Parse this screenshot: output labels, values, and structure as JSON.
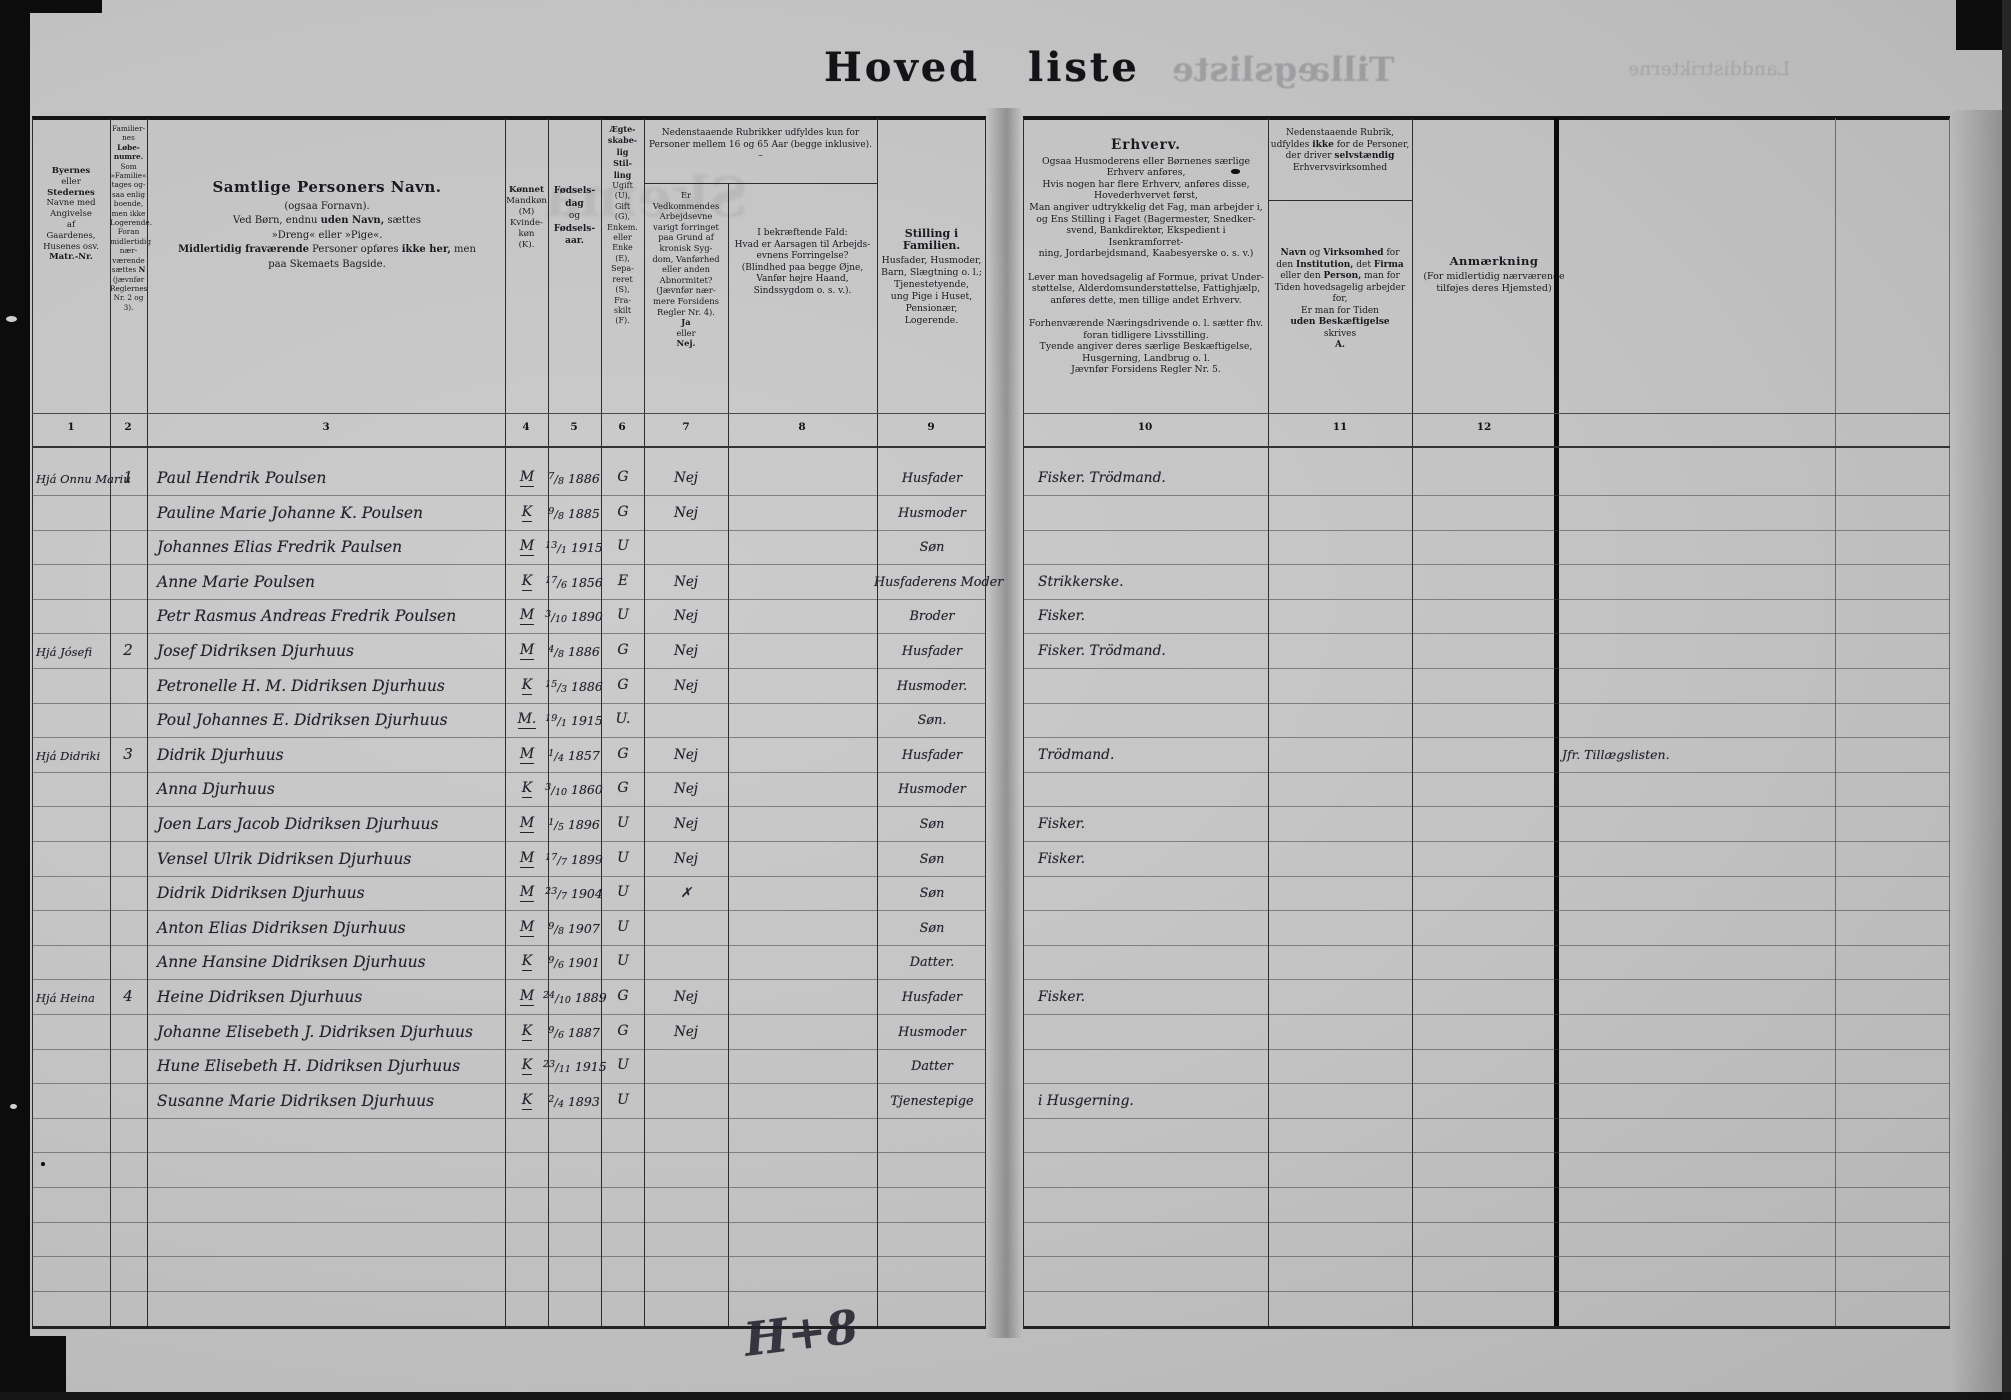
{
  "scan": {
    "title_left": "Hoved",
    "title_right": "liste"
  },
  "headers": {
    "span78": {
      "lines": [
        "Nedenstaaende Rubrikker udfyldes kun for",
        "Personer mellem 16 og 65 Aar (begge inklusive).",
        "–"
      ]
    },
    "c1": {
      "lines": [
        "**Byernes**",
        "eller",
        "**Stedernes**",
        "Navne med",
        "Angivelse",
        "af",
        "Gaardenes,",
        "Husenes osv.",
        "**Matr.-Nr.**"
      ]
    },
    "c2": {
      "lines": [
        "Familier-",
        "nes",
        "**Løbe-**",
        "**numre.**",
        "Som",
        "»Familie«",
        "tages og-",
        "saa enlig",
        "boende,",
        "men ikke",
        "Logerende.",
        "Foran",
        "midlertidig",
        "nær-",
        "værende",
        "sættes **N**",
        "(jævnfør",
        "Reglernes",
        "Nr. 2 og 3)."
      ]
    },
    "c3": {
      "lines": [
        "##Samtlige Personers Navn.",
        "(ogsaa Fornavn).",
        "Ved Børn, endnu **uden Navn,** sættes",
        "»Dreng« eller »Pige«.",
        "**Midlertidig fraværende** Personer opføres **ikke her,** men",
        "paa Skemaets Bagside."
      ]
    },
    "c4": {
      "lines": [
        "**Kønnet**",
        "Mandkøn",
        "(M)",
        "Kvinde-",
        "køn",
        "(K)."
      ]
    },
    "c5": {
      "lines": [
        "**Fødsels-**",
        "**dag**",
        "og",
        "**Fødsels-**",
        "**aar.**"
      ]
    },
    "c6": {
      "lines": [
        "**Ægte-**",
        "**skabe-**",
        "**lig**",
        "**Stil-**",
        "**ling**",
        "Ugift",
        "(U),",
        "Gift",
        "(G),",
        "Enkem.",
        "eller",
        "Enke",
        "(E),",
        "Sepa-",
        "reret",
        "(S),",
        "Fra-",
        "skilt",
        "(F)."
      ]
    },
    "c7": {
      "lines": [
        "Er",
        "Vedkommendes",
        "Arbejdsevne",
        "varigt forringet",
        "paa Grund af",
        "kronisk Syg-",
        "dom, Vanførhed",
        "eller anden",
        "Abnormitet?",
        "(Jævnfør nær-",
        "mere Forsidens",
        "Regler Nr. 4).",
        "**Ja**",
        "eller",
        "**Nej.**"
      ]
    },
    "c8": {
      "lines": [
        "I bekræftende Fald:",
        "Hvad er Aarsagen til Arbejds-",
        "evnens Forringelse?",
        "(Blindhed paa begge Øjne,",
        "Vanfør højre Haand,",
        "Sindssygdom o. s. v.)."
      ]
    },
    "c9": {
      "lines": [
        "##Stilling i Familien.",
        "Husfader, Husmoder,",
        "Barn, Slægtning o. l.;",
        "Tjenestetyende,",
        "ung Pige i Huset,",
        "Pensionær,",
        "Logerende."
      ]
    },
    "c10": {
      "lines": [
        "##Erhverv.",
        "Ogsaa Husmoderens eller Børnenes særlige",
        "Erhverv anføres,",
        "Hvis nogen har flere Erhverv, anføres disse,",
        "Hovederhvervet først,",
        "Man angiver udtrykkelig det Fag, man arbejder i,",
        "og Ens Stilling i Faget (Bagermester, Snedker-",
        "svend, Bankdirektør, Ekspedient i Isenkramforret-",
        "ning, Jordarbejdsmand, Kaabesyerske o. s. v.)",
        "",
        "Lever man hovedsagelig af Formue, privat Under-",
        "støttelse, Alderdomsunderstøttelse, Fattighjælp,",
        "anføres dette, men tillige andet Erhverv.",
        "",
        "Forhenværende Næringsdrivende o. l. sætter fhv.",
        "foran tidligere Livsstilling.",
        "Tyende angiver deres særlige Beskæftigelse,",
        "Husgerning, Landbrug o. l.",
        "Jævnfør Forsidens Regler Nr. 5."
      ]
    },
    "c11a": {
      "lines": [
        "Nedenstaaende Rubrik,",
        "udfyldes **ikke** for de Personer,",
        "der driver **selvstændig**",
        "Erhvervsvirksomhed"
      ]
    },
    "c11b": {
      "lines": [
        "**Navn** og **Virksomhed** for",
        "den **Institution,** det **Firma**",
        "eller den **Person,** man for",
        "Tiden hovedsagelig arbejder",
        "for,",
        "Er man for Tiden",
        "**uden Beskæftigelse**",
        "skrives",
        "**A.**"
      ]
    },
    "c12": {
      "lines": [
        "##Anmærkning",
        "(For midlertidig nærværende",
        "tilføjes deres Hjemsted)"
      ]
    }
  },
  "col_numbers_left": [
    "1",
    "2",
    "3",
    "4",
    "5",
    "6",
    "7",
    "8",
    "9"
  ],
  "col_numbers_right": [
    "10",
    "11",
    "12"
  ],
  "rows": [
    {
      "place": "Hjá Onnu Mariu",
      "family": "1",
      "name": "Paul Hendrik Poulsen",
      "sex": "M",
      "bd": "7",
      "bm": "8",
      "by": "1886",
      "marital": "G",
      "able": "Nej",
      "cause": "",
      "position": "Husfader",
      "occupation": "Fisker. Trödmand.",
      "employer": "",
      "remark": ""
    },
    {
      "place": "",
      "family": "",
      "name": "Pauline Marie Johanne K. Poulsen",
      "sex": "K",
      "bd": "9",
      "bm": "8",
      "by": "1885",
      "marital": "G",
      "able": "Nej",
      "cause": "",
      "position": "Husmoder",
      "occupation": "",
      "employer": "",
      "remark": ""
    },
    {
      "place": "",
      "family": "",
      "name": "Johannes Elias Fredrik Paulsen",
      "sex": "M",
      "bd": "13",
      "bm": "1",
      "by": "1915",
      "marital": "U",
      "able": "",
      "cause": "",
      "position": "Søn",
      "occupation": "",
      "employer": "",
      "remark": ""
    },
    {
      "place": "",
      "family": "",
      "name": "Anne Marie Poulsen",
      "sex": "K",
      "bd": "17",
      "bm": "6",
      "by": "1856",
      "marital": "E",
      "able": "Nej",
      "cause": "",
      "position": "Husfaderens Moder",
      "occupation": "Strikkerske.",
      "employer": "",
      "remark": ""
    },
    {
      "place": "",
      "family": "",
      "name": "Petr Rasmus Andreas Fredrik Poulsen",
      "sex": "M",
      "bd": "3",
      "bm": "10",
      "by": "1890",
      "marital": "U",
      "able": "Nej",
      "cause": "",
      "position": "Broder",
      "occupation": "Fisker.",
      "employer": "",
      "remark": ""
    },
    {
      "place": "Hjá Jósefi",
      "family": "2",
      "name": "Josef Didriksen Djurhuus",
      "sex": "M",
      "bd": "4",
      "bm": "8",
      "by": "1886",
      "marital": "G",
      "able": "Nej",
      "cause": "",
      "position": "Husfader",
      "occupation": "Fisker. Trödmand.",
      "employer": "",
      "remark": ""
    },
    {
      "place": "",
      "family": "",
      "name": "Petronelle H. M. Didriksen Djurhuus",
      "sex": "K",
      "bd": "15",
      "bm": "3",
      "by": "1886",
      "marital": "G",
      "able": "Nej",
      "cause": "",
      "position": "Husmoder.",
      "occupation": "",
      "employer": "",
      "remark": ""
    },
    {
      "place": "",
      "family": "",
      "name": "Poul Johannes E. Didriksen Djurhuus",
      "sex": "M.",
      "bd": "19",
      "bm": "1",
      "by": "1915",
      "marital": "U.",
      "able": "",
      "cause": "",
      "position": "Søn.",
      "occupation": "",
      "employer": "",
      "remark": ""
    },
    {
      "place": "Hjá Didriki",
      "family": "3",
      "name": "Didrik Djurhuus",
      "sex": "M",
      "bd": "1",
      "bm": "4",
      "by": "1857",
      "marital": "G",
      "able": "Nej",
      "cause": "",
      "position": "Husfader",
      "occupation": "Trödmand.",
      "employer": "",
      "remark": "Jfr. Tillægslisten."
    },
    {
      "place": "",
      "family": "",
      "name": "Anna Djurhuus",
      "sex": "K",
      "bd": "3",
      "bm": "10",
      "by": "1860",
      "marital": "G",
      "able": "Nej",
      "cause": "",
      "position": "Husmoder",
      "occupation": "",
      "employer": "",
      "remark": ""
    },
    {
      "place": "",
      "family": "",
      "name": "Joen Lars Jacob Didriksen Djurhuus",
      "sex": "M",
      "bd": "1",
      "bm": "5",
      "by": "1896",
      "marital": "U",
      "able": "Nej",
      "cause": "",
      "position": "Søn",
      "occupation": "Fisker.",
      "employer": "",
      "remark": ""
    },
    {
      "place": "",
      "family": "",
      "name": "Vensel Ulrik Didriksen Djurhuus",
      "sex": "M",
      "bd": "17",
      "bm": "7",
      "by": "1899",
      "marital": "U",
      "able": "Nej",
      "cause": "",
      "position": "Søn",
      "occupation": "Fisker.",
      "employer": "",
      "remark": ""
    },
    {
      "place": "",
      "family": "",
      "name": "Didrik Didriksen Djurhuus",
      "sex": "M",
      "bd": "23",
      "bm": "7",
      "by": "1904",
      "marital": "U",
      "able": "✗",
      "cause": "",
      "position": "Søn",
      "occupation": "",
      "employer": "",
      "remark": ""
    },
    {
      "place": "",
      "family": "",
      "name": "Anton Elias Didriksen Djurhuus",
      "sex": "M",
      "bd": "9",
      "bm": "8",
      "by": "1907",
      "marital": "U",
      "able": "",
      "cause": "",
      "position": "Søn",
      "occupation": "",
      "employer": "",
      "remark": ""
    },
    {
      "place": "",
      "family": "",
      "name": "Anne Hansine Didriksen Djurhuus",
      "sex": "K",
      "bd": "9",
      "bm": "6",
      "by": "1901",
      "marital": "U",
      "able": "",
      "cause": "",
      "position": "Datter.",
      "occupation": "",
      "employer": "",
      "remark": ""
    },
    {
      "place": "Hjá Heina",
      "family": "4",
      "name": "Heine Didriksen Djurhuus",
      "sex": "M",
      "bd": "24",
      "bm": "10",
      "by": "1889",
      "marital": "G",
      "able": "Nej",
      "cause": "",
      "position": "Husfader",
      "occupation": "Fisker.",
      "employer": "",
      "remark": ""
    },
    {
      "place": "",
      "family": "",
      "name": "Johanne Elisebeth J. Didriksen Djurhuus",
      "sex": "K",
      "bd": "9",
      "bm": "6",
      "by": "1887",
      "marital": "G",
      "able": "Nej",
      "cause": "",
      "position": "Husmoder",
      "occupation": "",
      "employer": "",
      "remark": ""
    },
    {
      "place": "",
      "family": "",
      "name": "Hune Elisebeth H. Didriksen Djurhuus",
      "sex": "K",
      "bd": "23",
      "bm": "11",
      "by": "1915",
      "marital": "U",
      "able": "",
      "cause": "",
      "position": "Datter",
      "occupation": "",
      "employer": "",
      "remark": ""
    },
    {
      "place": "",
      "family": "",
      "name": "Susanne Marie Didriksen Djurhuus",
      "sex": "K",
      "bd": "2",
      "bm": "4",
      "by": "1893",
      "marital": "U",
      "able": "",
      "cause": "",
      "position": "Tjenestepige",
      "occupation": "i Husgerning.",
      "employer": "",
      "remark": ""
    }
  ],
  "annotations": {
    "bottom_scribble": "H+8"
  },
  "ghost_bleedthrough": {
    "right_top_title": "Tillægsliste",
    "right_top_sub": "Landdistrikterne",
    "left_page_word": "Skema"
  }
}
